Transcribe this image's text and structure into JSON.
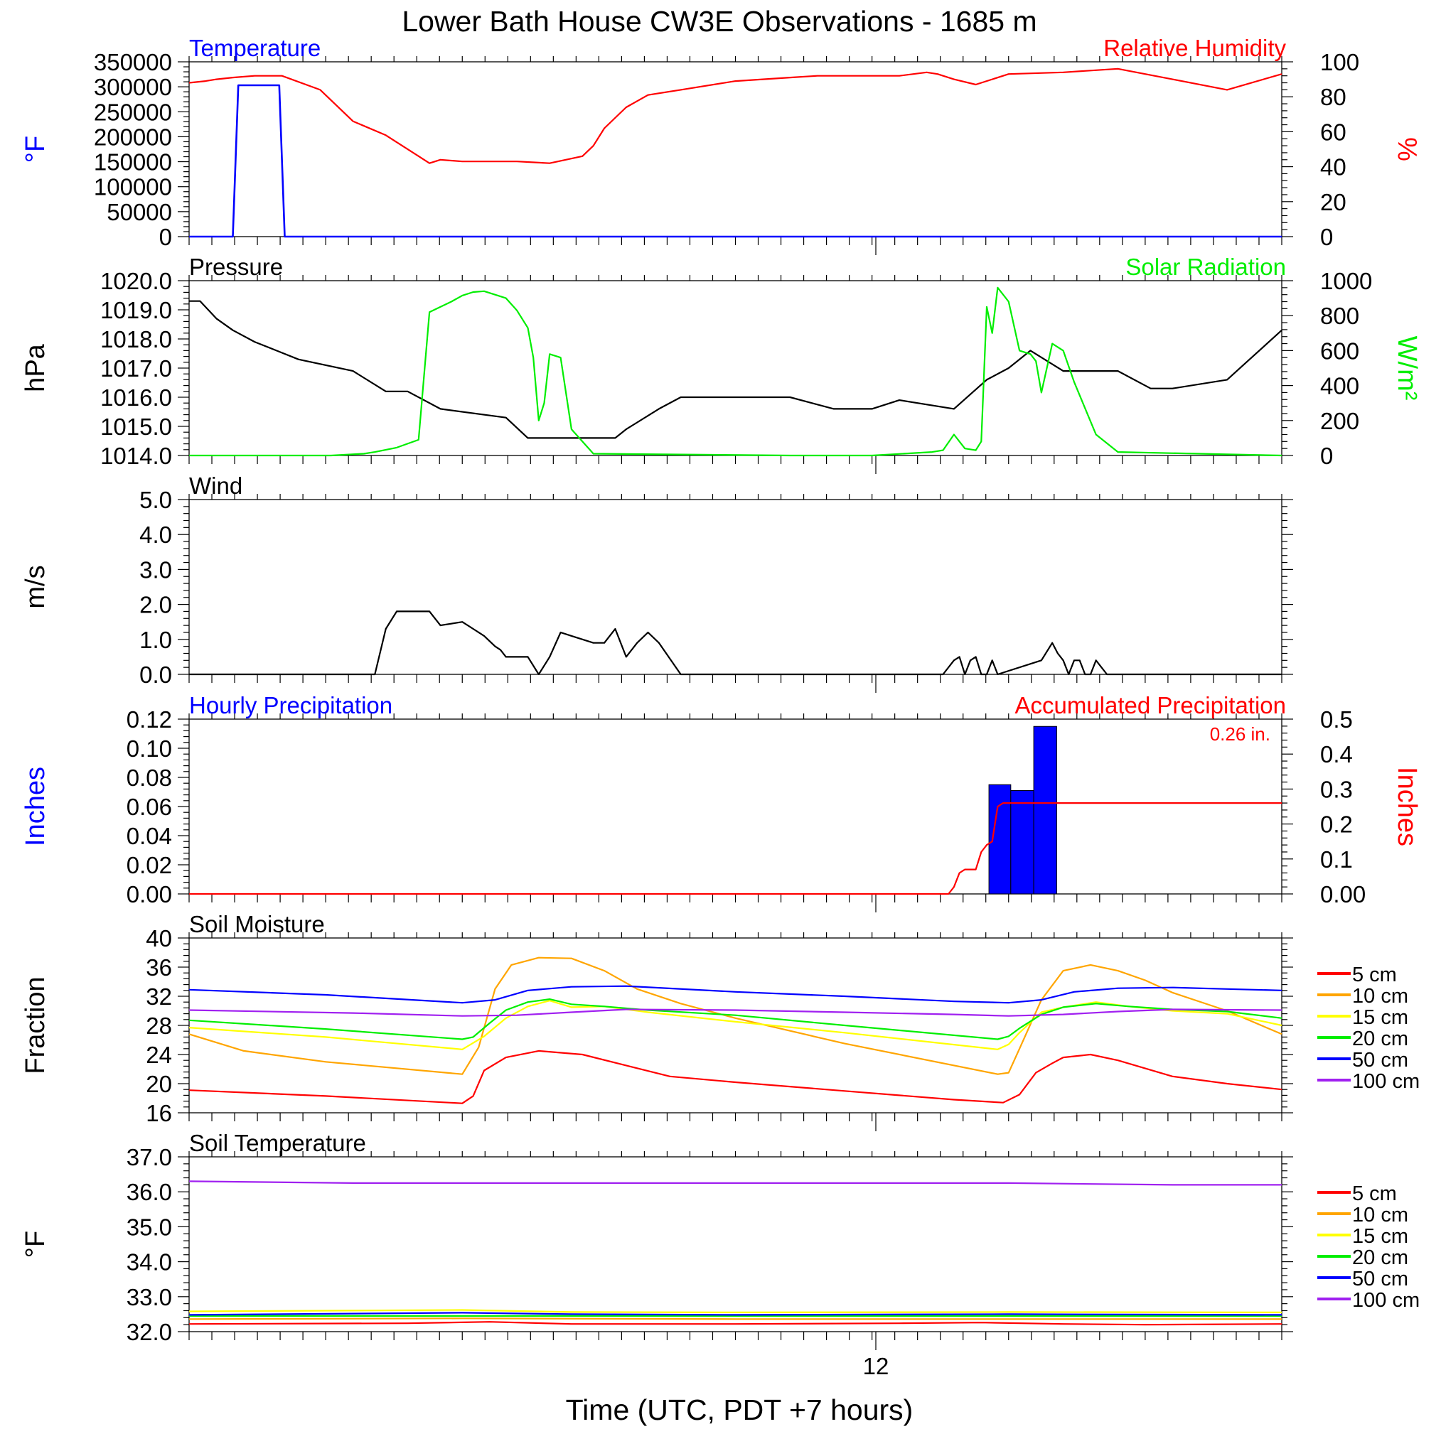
{
  "title": "Lower Bath House CW3E Observations - 1685 m",
  "xlabel": "Time (UTC, PDT +7 hours)",
  "x_tick_label": "12",
  "chart_data": [
    {
      "id": "temp_rh",
      "type": "line",
      "left_title": "Temperature",
      "right_title": "Relative Humidity",
      "left_unit": "°F",
      "right_unit": "%",
      "left_ylim": [
        0,
        350000
      ],
      "right_ylim": [
        0,
        100
      ],
      "left_ticks": [
        "0",
        "50000",
        "100000",
        "150000",
        "200000",
        "250000",
        "300000",
        "350000"
      ],
      "right_ticks": [
        "0",
        "20",
        "40",
        "60",
        "80",
        "100"
      ],
      "series": [
        {
          "name": "Temperature",
          "axis": "left",
          "color": "#0000ff",
          "x": [
            0,
            8,
            9,
            16.5,
            17.5,
            200
          ],
          "y": [
            0,
            0,
            303000,
            303000,
            0,
            0
          ]
        },
        {
          "name": "Relative Humidity",
          "axis": "right",
          "color": "#ff0000",
          "x": [
            0,
            3,
            5,
            8,
            12,
            17,
            24,
            30,
            36,
            42,
            44,
            46,
            50,
            60,
            66,
            72,
            74,
            76,
            80,
            84,
            90,
            100,
            110,
            115,
            120,
            130,
            135,
            137,
            140,
            144,
            150,
            160,
            170,
            180,
            190,
            200
          ],
          "y": [
            88,
            89,
            90,
            91,
            92,
            92,
            84,
            66,
            58,
            46,
            42,
            44,
            43,
            43,
            42,
            46,
            52,
            62,
            74,
            81,
            84,
            89,
            91,
            92,
            92,
            92,
            94,
            93,
            90,
            87,
            93,
            94,
            96,
            90,
            84,
            93
          ]
        }
      ]
    },
    {
      "id": "press_solar",
      "type": "line",
      "left_title": "Pressure",
      "right_title": "Solar Radiation",
      "left_unit": "hPa",
      "right_unit": "W/m²",
      "left_ylim": [
        1014.0,
        1020.0
      ],
      "right_ylim": [
        0,
        1000
      ],
      "left_ticks": [
        "1014.0",
        "1015.0",
        "1016.0",
        "1017.0",
        "1018.0",
        "1019.0",
        "1020.0"
      ],
      "right_ticks": [
        "0",
        "200",
        "400",
        "600",
        "800",
        "1000"
      ],
      "series": [
        {
          "name": "Pressure",
          "axis": "left",
          "color": "#000000",
          "x": [
            0,
            2,
            5,
            8,
            12,
            16,
            20,
            30,
            36,
            40,
            46,
            58,
            62,
            66,
            78,
            80,
            86,
            90,
            96,
            100,
            110,
            118,
            125,
            130,
            140,
            146,
            150,
            154,
            160,
            170,
            176,
            180,
            190,
            200
          ],
          "y": [
            1019.3,
            1019.3,
            1018.7,
            1018.3,
            1017.9,
            1017.6,
            1017.3,
            1016.9,
            1016.2,
            1016.2,
            1015.6,
            1015.3,
            1014.6,
            1014.6,
            1014.6,
            1014.9,
            1015.6,
            1016.0,
            1016.0,
            1016.0,
            1016.0,
            1015.6,
            1015.6,
            1015.9,
            1015.6,
            1016.6,
            1017.0,
            1017.6,
            1016.9,
            1016.9,
            1016.3,
            1016.3,
            1016.6,
            1018.3
          ]
        },
        {
          "name": "Solar Radiation",
          "axis": "right",
          "color": "#00ee00",
          "x": [
            0,
            26,
            32,
            34,
            38,
            42,
            44,
            46,
            48,
            50,
            52,
            54,
            56,
            58,
            60,
            62,
            63,
            64,
            65,
            66,
            68,
            70,
            74,
            110,
            125,
            136,
            138,
            140,
            142,
            144,
            145,
            146,
            147,
            148,
            150,
            152,
            154,
            155,
            156,
            158,
            160,
            162,
            166,
            170,
            200
          ],
          "y": [
            0,
            0,
            10,
            20,
            45,
            90,
            820,
            850,
            880,
            915,
            935,
            940,
            920,
            900,
            830,
            730,
            560,
            200,
            300,
            580,
            560,
            150,
            10,
            0,
            0,
            20,
            30,
            120,
            40,
            30,
            80,
            850,
            700,
            960,
            880,
            600,
            580,
            540,
            360,
            640,
            600,
            420,
            120,
            20,
            0
          ]
        }
      ]
    },
    {
      "id": "wind",
      "type": "line",
      "left_title": "Wind",
      "left_unit": "m/s",
      "left_ylim": [
        0.0,
        5.0
      ],
      "left_ticks": [
        "0.0",
        "1.0",
        "2.0",
        "3.0",
        "4.0",
        "5.0"
      ],
      "series": [
        {
          "name": "Wind",
          "axis": "left",
          "color": "#000000",
          "x": [
            0,
            34,
            36,
            38,
            40,
            44,
            46,
            50,
            52,
            54,
            56,
            57,
            58,
            60,
            62,
            64,
            66,
            68,
            70,
            72,
            74,
            76,
            78,
            80,
            82,
            84,
            86,
            90,
            138,
            140,
            141,
            142,
            143,
            144,
            145,
            146,
            147,
            148,
            156,
            158,
            159,
            160,
            161,
            162,
            163,
            164,
            165,
            166,
            168,
            200
          ],
          "y": [
            0,
            0,
            1.3,
            1.8,
            1.8,
            1.8,
            1.4,
            1.5,
            1.3,
            1.1,
            0.8,
            0.7,
            0.5,
            0.5,
            0.5,
            0,
            0.5,
            1.2,
            1.1,
            1.0,
            0.9,
            0.9,
            1.3,
            0.5,
            0.9,
            1.2,
            0.9,
            0,
            0,
            0.4,
            0.5,
            0,
            0.4,
            0.5,
            0,
            0,
            0.4,
            0,
            0.4,
            0.9,
            0.6,
            0.4,
            0,
            0.4,
            0.4,
            0,
            0,
            0.4,
            0,
            0
          ]
        }
      ]
    },
    {
      "id": "precip",
      "type": "bar",
      "left_title": "Hourly Precipitation",
      "right_title": "Accumulated Precipitation",
      "annotation": "0.26 in.",
      "left_unit": "Inches",
      "right_unit": "Inches",
      "left_ylim": [
        0.0,
        0.12
      ],
      "right_ylim": [
        0.0,
        0.5
      ],
      "left_ticks": [
        "0.00",
        "0.02",
        "0.04",
        "0.06",
        "0.08",
        "0.10",
        "0.12"
      ],
      "right_ticks": [
        "0.00",
        "0.1",
        "0.2",
        "0.3",
        "0.4",
        "0.5"
      ],
      "bars": [
        {
          "start": 146.4,
          "end": 150.4,
          "value": 0.075
        },
        {
          "start": 150.4,
          "end": 154.6,
          "value": 0.071
        },
        {
          "start": 154.6,
          "end": 158.8,
          "value": 0.115
        }
      ],
      "series": [
        {
          "name": "Accumulated Precipitation",
          "axis": "right",
          "color": "#ff0000",
          "x": [
            0,
            139,
            140,
            141,
            142,
            144,
            145,
            146,
            147,
            148,
            149,
            150,
            200
          ],
          "y": [
            0,
            0,
            0.02,
            0.06,
            0.07,
            0.07,
            0.12,
            0.14,
            0.15,
            0.25,
            0.26,
            0.26,
            0.26
          ]
        }
      ]
    },
    {
      "id": "soil_moisture",
      "type": "line",
      "left_title": "Soil Moisture",
      "left_unit": "Fraction",
      "left_ylim": [
        16,
        40
      ],
      "left_ticks": [
        "16",
        "20",
        "24",
        "28",
        "32",
        "36",
        "40"
      ],
      "legend": [
        "5 cm",
        "10 cm",
        "15 cm",
        "20 cm",
        "50 cm",
        "100 cm"
      ],
      "series": [
        {
          "name": "5 cm",
          "color": "#ff0000",
          "x": [
            0,
            25,
            50,
            52,
            54,
            58,
            64,
            72,
            80,
            88,
            100,
            120,
            140,
            149,
            152,
            155,
            158,
            160,
            165,
            170,
            180,
            190,
            200
          ],
          "y": [
            19.1,
            18.3,
            17.3,
            18.3,
            21.8,
            23.6,
            24.5,
            24.0,
            22.5,
            21.0,
            20.2,
            19.0,
            17.8,
            17.4,
            18.5,
            21.5,
            22.8,
            23.6,
            24.0,
            23.2,
            21.0,
            20.0,
            19.2
          ]
        },
        {
          "name": "10 cm",
          "color": "#ffa500",
          "x": [
            0,
            10,
            25,
            50,
            53,
            56,
            59,
            64,
            70,
            76,
            82,
            90,
            100,
            120,
            148,
            150,
            152,
            156,
            160,
            165,
            170,
            175,
            180,
            190,
            200
          ],
          "y": [
            26.8,
            24.5,
            23.0,
            21.3,
            25.0,
            33.0,
            36.3,
            37.3,
            37.2,
            35.5,
            33.0,
            31.0,
            29.0,
            25.5,
            21.3,
            21.5,
            24.8,
            31.5,
            35.5,
            36.3,
            35.5,
            34.2,
            32.5,
            30.0,
            26.8
          ]
        },
        {
          "name": "15 cm",
          "color": "#ffff00",
          "x": [
            0,
            25,
            50,
            54,
            58,
            62,
            66,
            70,
            76,
            84,
            100,
            120,
            148,
            150,
            152,
            156,
            160,
            166,
            172,
            180,
            190,
            200
          ],
          "y": [
            27.7,
            26.4,
            24.7,
            26.5,
            29.0,
            30.6,
            31.4,
            30.5,
            30.6,
            29.8,
            28.5,
            27.0,
            24.7,
            25.4,
            27.0,
            29.8,
            30.5,
            31.2,
            30.6,
            30.0,
            29.6,
            28.0
          ]
        },
        {
          "name": "20 cm",
          "color": "#00ee00",
          "x": [
            0,
            25,
            50,
            52,
            55,
            58,
            62,
            66,
            70,
            76,
            84,
            100,
            120,
            148,
            150,
            152,
            156,
            160,
            166,
            172,
            180,
            190,
            200
          ],
          "y": [
            28.7,
            27.5,
            26.1,
            26.4,
            28.3,
            30.1,
            31.2,
            31.6,
            30.9,
            30.6,
            30.1,
            29.4,
            28.0,
            26.1,
            26.5,
            27.6,
            29.5,
            30.5,
            31.0,
            30.6,
            30.2,
            29.9,
            29.0
          ]
        },
        {
          "name": "50 cm",
          "color": "#0000ff",
          "x": [
            0,
            25,
            50,
            56,
            62,
            70,
            80,
            100,
            120,
            140,
            150,
            156,
            162,
            170,
            180,
            190,
            200
          ],
          "y": [
            32.9,
            32.2,
            31.1,
            31.5,
            32.8,
            33.3,
            33.4,
            32.6,
            32.0,
            31.3,
            31.1,
            31.5,
            32.6,
            33.1,
            33.2,
            33.0,
            32.8
          ]
        },
        {
          "name": "100 cm",
          "color": "#a020f0",
          "x": [
            0,
            30,
            50,
            60,
            70,
            80,
            100,
            120,
            140,
            150,
            160,
            170,
            180,
            200
          ],
          "y": [
            30.1,
            29.7,
            29.3,
            29.4,
            29.8,
            30.2,
            30.1,
            29.8,
            29.5,
            29.3,
            29.5,
            29.9,
            30.2,
            30.1
          ]
        }
      ]
    },
    {
      "id": "soil_temp",
      "type": "line",
      "left_title": "Soil Temperature",
      "left_unit": "°F",
      "left_ylim": [
        32.0,
        37.0
      ],
      "left_ticks": [
        "32.0",
        "33.0",
        "34.0",
        "35.0",
        "36.0",
        "37.0"
      ],
      "legend": [
        "5 cm",
        "10 cm",
        "15 cm",
        "20 cm",
        "50 cm",
        "100 cm"
      ],
      "series": [
        {
          "name": "5 cm",
          "color": "#ff0000",
          "x": [
            0,
            40,
            55,
            70,
            100,
            130,
            145,
            160,
            175,
            200
          ],
          "y": [
            32.22,
            32.24,
            32.28,
            32.22,
            32.22,
            32.24,
            32.26,
            32.22,
            32.2,
            32.22
          ]
        },
        {
          "name": "10 cm",
          "color": "#ffa500",
          "x": [
            0,
            50,
            100,
            150,
            200
          ],
          "y": [
            32.36,
            32.38,
            32.36,
            32.36,
            32.36
          ]
        },
        {
          "name": "15 cm",
          "color": "#ffff00",
          "x": [
            0,
            50,
            70,
            100,
            150,
            200
          ],
          "y": [
            32.58,
            32.62,
            32.56,
            32.55,
            32.56,
            32.55
          ]
        },
        {
          "name": "20 cm",
          "color": "#00ee00",
          "x": [
            0,
            200
          ],
          "y": [
            32.45,
            32.45
          ]
        },
        {
          "name": "50 cm",
          "color": "#0000ff",
          "x": [
            0,
            50,
            70,
            100,
            150,
            200
          ],
          "y": [
            32.48,
            32.54,
            32.5,
            32.48,
            32.5,
            32.48
          ]
        },
        {
          "name": "100 cm",
          "color": "#a020f0",
          "x": [
            0,
            30,
            100,
            150,
            180,
            200
          ],
          "y": [
            36.3,
            36.25,
            36.25,
            36.25,
            36.2,
            36.2
          ]
        }
      ]
    }
  ]
}
